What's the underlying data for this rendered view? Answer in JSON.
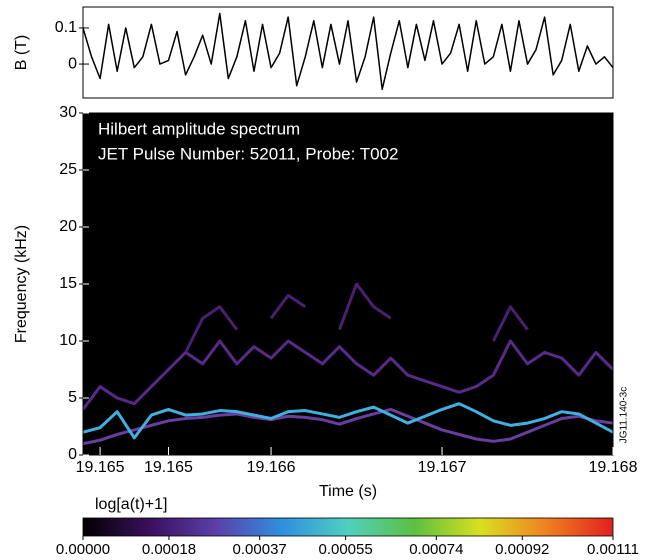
{
  "chart_data": [
    {
      "type": "line",
      "y_label": "B (T)",
      "x": [
        19.1649,
        19.16495,
        19.165,
        19.16505,
        19.1651,
        19.16515,
        19.1652,
        19.16525,
        19.1653,
        19.16535,
        19.1654,
        19.16545,
        19.1655,
        19.16555,
        19.1656,
        19.16565,
        19.1657,
        19.16575,
        19.1658,
        19.16585,
        19.1659,
        19.16595,
        19.166,
        19.16605,
        19.1661,
        19.16615,
        19.1662,
        19.16625,
        19.1663,
        19.16635,
        19.1664,
        19.16645,
        19.1665,
        19.16655,
        19.1666,
        19.16665,
        19.1667,
        19.16675,
        19.1668,
        19.16685,
        19.1669,
        19.16695,
        19.167,
        19.16705,
        19.1671,
        19.16715,
        19.1672,
        19.16725,
        19.1673,
        19.16735,
        19.1674,
        19.16745,
        19.1675,
        19.16755,
        19.1676,
        19.16765,
        19.1677,
        19.16775,
        19.1678,
        19.16785,
        19.1679,
        19.16795,
        19.168
      ],
      "series": [
        {
          "color": "#000000",
          "values": [
            0.1,
            0.02,
            -0.04,
            0.11,
            -0.02,
            0.1,
            -0.01,
            0.02,
            0.11,
            0.0,
            0.01,
            0.09,
            -0.03,
            0.02,
            0.08,
            0.0,
            0.14,
            -0.04,
            0.02,
            0.12,
            -0.02,
            0.11,
            -0.01,
            0.03,
            0.13,
            -0.06,
            0.02,
            0.12,
            -0.01,
            0.11,
            0.0,
            0.12,
            -0.05,
            0.02,
            0.13,
            -0.07,
            0.03,
            0.12,
            -0.01,
            0.11,
            0.01,
            0.12,
            0.0,
            0.03,
            0.11,
            -0.02,
            0.12,
            0.0,
            0.02,
            0.11,
            -0.02,
            0.12,
            0.0,
            0.04,
            0.13,
            -0.03,
            0.01,
            0.11,
            -0.02,
            0.05,
            0.0,
            0.02,
            -0.01
          ]
        }
      ],
      "xlim": [
        19.1649,
        19.168
      ],
      "ylim": [
        -0.094,
        0.158
      ],
      "yticks": [
        0,
        0.1
      ]
    },
    {
      "type": "line",
      "title": "Hilbert amplitude spectrum",
      "subtitle": "JET Pulse Number: 52011, Probe: T002",
      "x_label": "Time (s)",
      "y_label": "Frequency (kHz)",
      "annotation": "JG11.140-3c",
      "background": "#000000",
      "x": [
        19.1649,
        19.165,
        19.1651,
        19.1652,
        19.1653,
        19.1654,
        19.1655,
        19.1656,
        19.1657,
        19.1658,
        19.1659,
        19.166,
        19.1661,
        19.1662,
        19.1663,
        19.1664,
        19.1665,
        19.1666,
        19.1667,
        19.1668,
        19.1669,
        19.167,
        19.1671,
        19.1672,
        19.1673,
        19.1674,
        19.1675,
        19.1676,
        19.1677,
        19.1678,
        19.1679,
        19.168
      ],
      "series": [
        {
          "color": "#6a3da0",
          "values": [
            1,
            1.3,
            1.8,
            2.2,
            2.6,
            3,
            3.2,
            3.3,
            3.5,
            3.6,
            3.3,
            3.1,
            3.4,
            3.3,
            3.1,
            2.7,
            3.2,
            3.6,
            4,
            3.4,
            2.8,
            2.2,
            1.8,
            1.4,
            1.2,
            1.4,
            2,
            2.6,
            3.2,
            3.4,
            3,
            2.8
          ]
        },
        {
          "color": "#40b0e0",
          "values": [
            2,
            2.4,
            3.8,
            1.5,
            3.5,
            4,
            3.5,
            3.6,
            3.9,
            3.8,
            3.5,
            3.2,
            3.8,
            3.9,
            3.6,
            3.3,
            3.8,
            4.2,
            3.5,
            2.8,
            3.4,
            4,
            4.5,
            3.8,
            3,
            2.6,
            2.8,
            3.2,
            3.8,
            3.6,
            2.8,
            2
          ]
        },
        {
          "color": "#5a2a8a",
          "values": [
            4,
            6,
            5,
            4.5,
            6,
            7.5,
            9,
            8,
            10,
            8,
            9.5,
            8.5,
            10,
            9,
            8,
            9.5,
            8,
            7,
            8.5,
            7,
            6.5,
            6,
            5.5,
            6,
            7,
            10,
            8,
            9,
            8.5,
            7,
            9,
            7.5
          ]
        },
        {
          "color": "#4a2070",
          "values": [
            null,
            null,
            null,
            null,
            null,
            null,
            9,
            12,
            13,
            11,
            null,
            12,
            14,
            13,
            null,
            11,
            15,
            13,
            12,
            null,
            null,
            null,
            null,
            null,
            10,
            13,
            11,
            null,
            null,
            null,
            null,
            null
          ]
        }
      ],
      "xlim": [
        19.1649,
        19.168
      ],
      "ylim": [
        0,
        30
      ],
      "yticks": [
        0,
        5,
        10,
        15,
        20,
        25,
        30
      ],
      "xticks": [
        19.165,
        {
          "value": 19.1654,
          "label": "19.165"
        },
        19.166,
        19.167,
        19.168
      ],
      "colorbar": {
        "label": "log[a(t)+1]",
        "lim": [
          0,
          0.00111
        ],
        "ticks": [
          {
            "value": 0,
            "label": "0.00000"
          },
          0.00018,
          0.00037,
          0.00055,
          0.00074,
          0.00092,
          0.00111
        ],
        "colors": [
          "#000000",
          "#3a0f5e",
          "#5b3fa8",
          "#2f8fe0",
          "#4fd0c0",
          "#5cc040",
          "#d8e020",
          "#f08020",
          "#e02020"
        ]
      }
    }
  ]
}
